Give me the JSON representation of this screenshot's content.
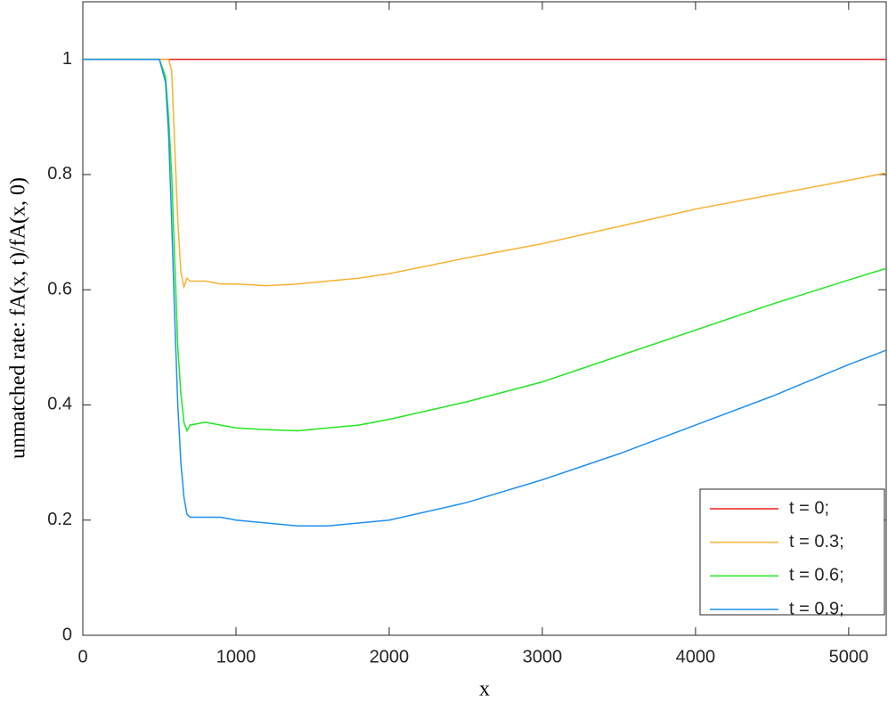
{
  "chart_data": {
    "type": "line",
    "x_label": "x",
    "y_label": "unmatched rate: fA(x, t)/fA(x, 0)",
    "x": [
      0,
      500,
      540,
      560,
      580,
      600,
      620,
      640,
      660,
      680,
      700,
      800,
      900,
      1000,
      1200,
      1400,
      1600,
      1800,
      2000,
      2500,
      3000,
      3500,
      4000,
      4500,
      5000,
      5245
    ],
    "series": [
      {
        "name": "t = 0;",
        "color": "#e8201f",
        "values": [
          1,
          1,
          1,
          1,
          1,
          1,
          1,
          1,
          1,
          1,
          1,
          1,
          1,
          1,
          1,
          1,
          1,
          1,
          1,
          1,
          1,
          1,
          1,
          1,
          1,
          1
        ]
      },
      {
        "name": "t = 0.3;",
        "color": "#f7b232",
        "values": [
          1,
          1,
          1,
          1,
          0.98,
          0.85,
          0.72,
          0.63,
          0.605,
          0.62,
          0.615,
          0.615,
          0.61,
          0.61,
          0.607,
          0.61,
          0.615,
          0.62,
          0.628,
          0.655,
          0.68,
          0.71,
          0.74,
          0.765,
          0.79,
          0.803
        ]
      },
      {
        "name": "t = 0.6;",
        "color": "#22e622",
        "values": [
          1,
          1,
          0.97,
          0.9,
          0.8,
          0.65,
          0.5,
          0.42,
          0.37,
          0.355,
          0.365,
          0.37,
          0.365,
          0.36,
          0.357,
          0.355,
          0.36,
          0.365,
          0.375,
          0.405,
          0.44,
          0.485,
          0.53,
          0.575,
          0.617,
          0.637
        ]
      },
      {
        "name": "t = 0.9;",
        "color": "#1e8ff0",
        "values": [
          1,
          1,
          0.96,
          0.87,
          0.72,
          0.55,
          0.4,
          0.3,
          0.24,
          0.21,
          0.205,
          0.205,
          0.205,
          0.2,
          0.195,
          0.19,
          0.19,
          0.195,
          0.2,
          0.23,
          0.27,
          0.315,
          0.365,
          0.415,
          0.47,
          0.495
        ]
      }
    ],
    "xlim": [
      0,
      5245
    ],
    "xticks": [
      0,
      1000,
      2000,
      3000,
      4000,
      5000
    ],
    "ylim": [
      0,
      1.1
    ],
    "yticks": [
      0,
      0.2,
      0.4,
      0.6,
      0.8,
      1
    ],
    "grid": false,
    "legend": "lower right"
  }
}
